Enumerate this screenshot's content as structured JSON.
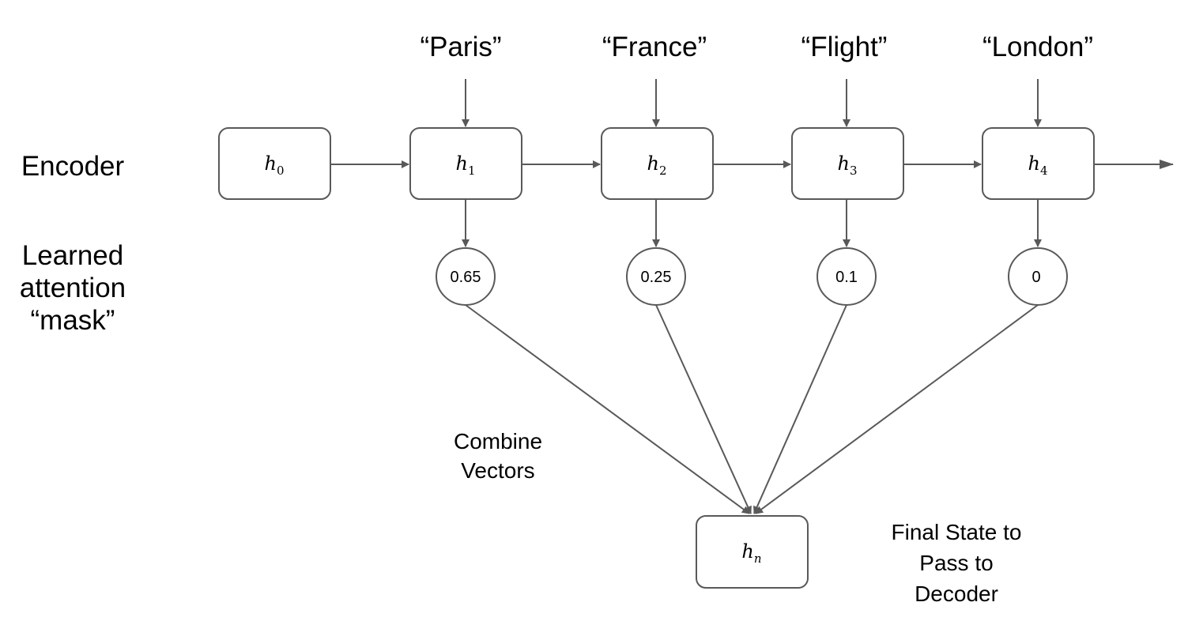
{
  "row_labels": {
    "encoder": "Encoder",
    "attention_line1": "Learned",
    "attention_line2": "attention",
    "attention_line3": "“mask”"
  },
  "inputs": [
    "“Paris”",
    "“France”",
    "“Flight”",
    "“London”"
  ],
  "states": [
    {
      "base": "h",
      "sub": "0"
    },
    {
      "base": "h",
      "sub": "1"
    },
    {
      "base": "h",
      "sub": "2"
    },
    {
      "base": "h",
      "sub": "3"
    },
    {
      "base": "h",
      "sub": "4"
    }
  ],
  "weights": [
    "0.65",
    "0.25",
    "0.1",
    "0"
  ],
  "final_state": {
    "base": "h",
    "sub": "n"
  },
  "notes": {
    "combine_line1": "Combine",
    "combine_line2": "Vectors",
    "final_line1": "Final State to",
    "final_line2": "Pass to",
    "final_line3": "Decoder"
  },
  "colors": {
    "stroke": "#595959",
    "fill": "#ffffff",
    "text": "#000000"
  }
}
